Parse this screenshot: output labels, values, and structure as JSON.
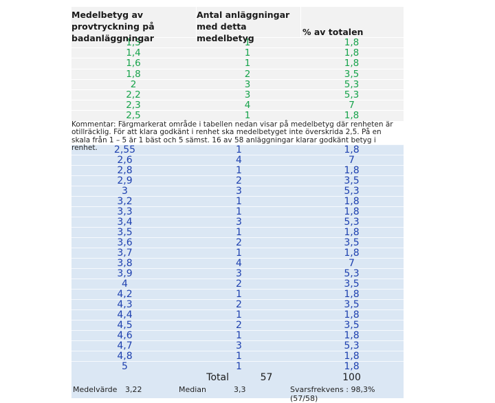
{
  "header": {
    "col1": "Medelbetyg av provtryckning på badanläggningar",
    "col2": "Antal anläggningar med detta medelbetyg",
    "col3": "% av totalen"
  },
  "green_rows": [
    {
      "grade": "1,3",
      "count": "1",
      "pct": "1,8"
    },
    {
      "grade": "1,4",
      "count": "1",
      "pct": "1,8"
    },
    {
      "grade": "1,6",
      "count": "1",
      "pct": "1,8"
    },
    {
      "grade": "1,8",
      "count": "2",
      "pct": "3,5"
    },
    {
      "grade": "2",
      "count": "3",
      "pct": "5,3"
    },
    {
      "grade": "2,2",
      "count": "3",
      "pct": "5,3"
    },
    {
      "grade": "2,3",
      "count": "4",
      "pct": "7"
    },
    {
      "grade": "2,5",
      "count": "1",
      "pct": "1,8"
    }
  ],
  "comment": "Kommentar: Färgmarkerat område i tabellen nedan visar på medelbetyg där renheten är otillräcklig. För att klara godkänt i renhet ska medelbetyget inte överskrida 2,5. På en skala från 1 – 5 är 1 bäst och 5 sämst. 16 av 58 anläggningar klarar godkänt betyg i renhet.",
  "blue_rows": [
    {
      "grade": "2,55",
      "count": "1",
      "pct": "1,8"
    },
    {
      "grade": "2,6",
      "count": "4",
      "pct": "7"
    },
    {
      "grade": "2,8",
      "count": "1",
      "pct": "1,8"
    },
    {
      "grade": "2,9",
      "count": "2",
      "pct": "3,5"
    },
    {
      "grade": "3",
      "count": "3",
      "pct": "5,3"
    },
    {
      "grade": "3,2",
      "count": "1",
      "pct": "1,8"
    },
    {
      "grade": "3,3",
      "count": "1",
      "pct": "1,8"
    },
    {
      "grade": "3,4",
      "count": "3",
      "pct": "5,3"
    },
    {
      "grade": "3,5",
      "count": "1",
      "pct": "1,8"
    },
    {
      "grade": "3,6",
      "count": "2",
      "pct": "3,5"
    },
    {
      "grade": "3,7",
      "count": "1",
      "pct": "1,8"
    },
    {
      "grade": "3,8",
      "count": "4",
      "pct": "7"
    },
    {
      "grade": "3,9",
      "count": "3",
      "pct": "5,3"
    },
    {
      "grade": "4",
      "count": "2",
      "pct": "3,5"
    },
    {
      "grade": "4,2",
      "count": "1",
      "pct": "1,8"
    },
    {
      "grade": "4,3",
      "count": "2",
      "pct": "3,5"
    },
    {
      "grade": "4,4",
      "count": "1",
      "pct": "1,8"
    },
    {
      "grade": "4,5",
      "count": "2",
      "pct": "3,5"
    },
    {
      "grade": "4,6",
      "count": "1",
      "pct": "1,8"
    },
    {
      "grade": "4,7",
      "count": "3",
      "pct": "5,3"
    },
    {
      "grade": "4,8",
      "count": "1",
      "pct": "1,8"
    },
    {
      "grade": "5",
      "count": "1",
      "pct": "1,8"
    }
  ],
  "total": {
    "label": "Total",
    "count": "57",
    "pct": "100"
  },
  "footer": {
    "mean_label": "Medelvärde",
    "mean_value": "3,22",
    "median_label": "Median",
    "median_value": "3,3",
    "response": "Svarsfrekvens : 98,3% (57/58)"
  },
  "colors": {
    "green_text": "#16a34a",
    "blue_text": "#1e40af",
    "blue_bg": "#dbe7f4",
    "grey_bg": "#f2f2f2"
  }
}
